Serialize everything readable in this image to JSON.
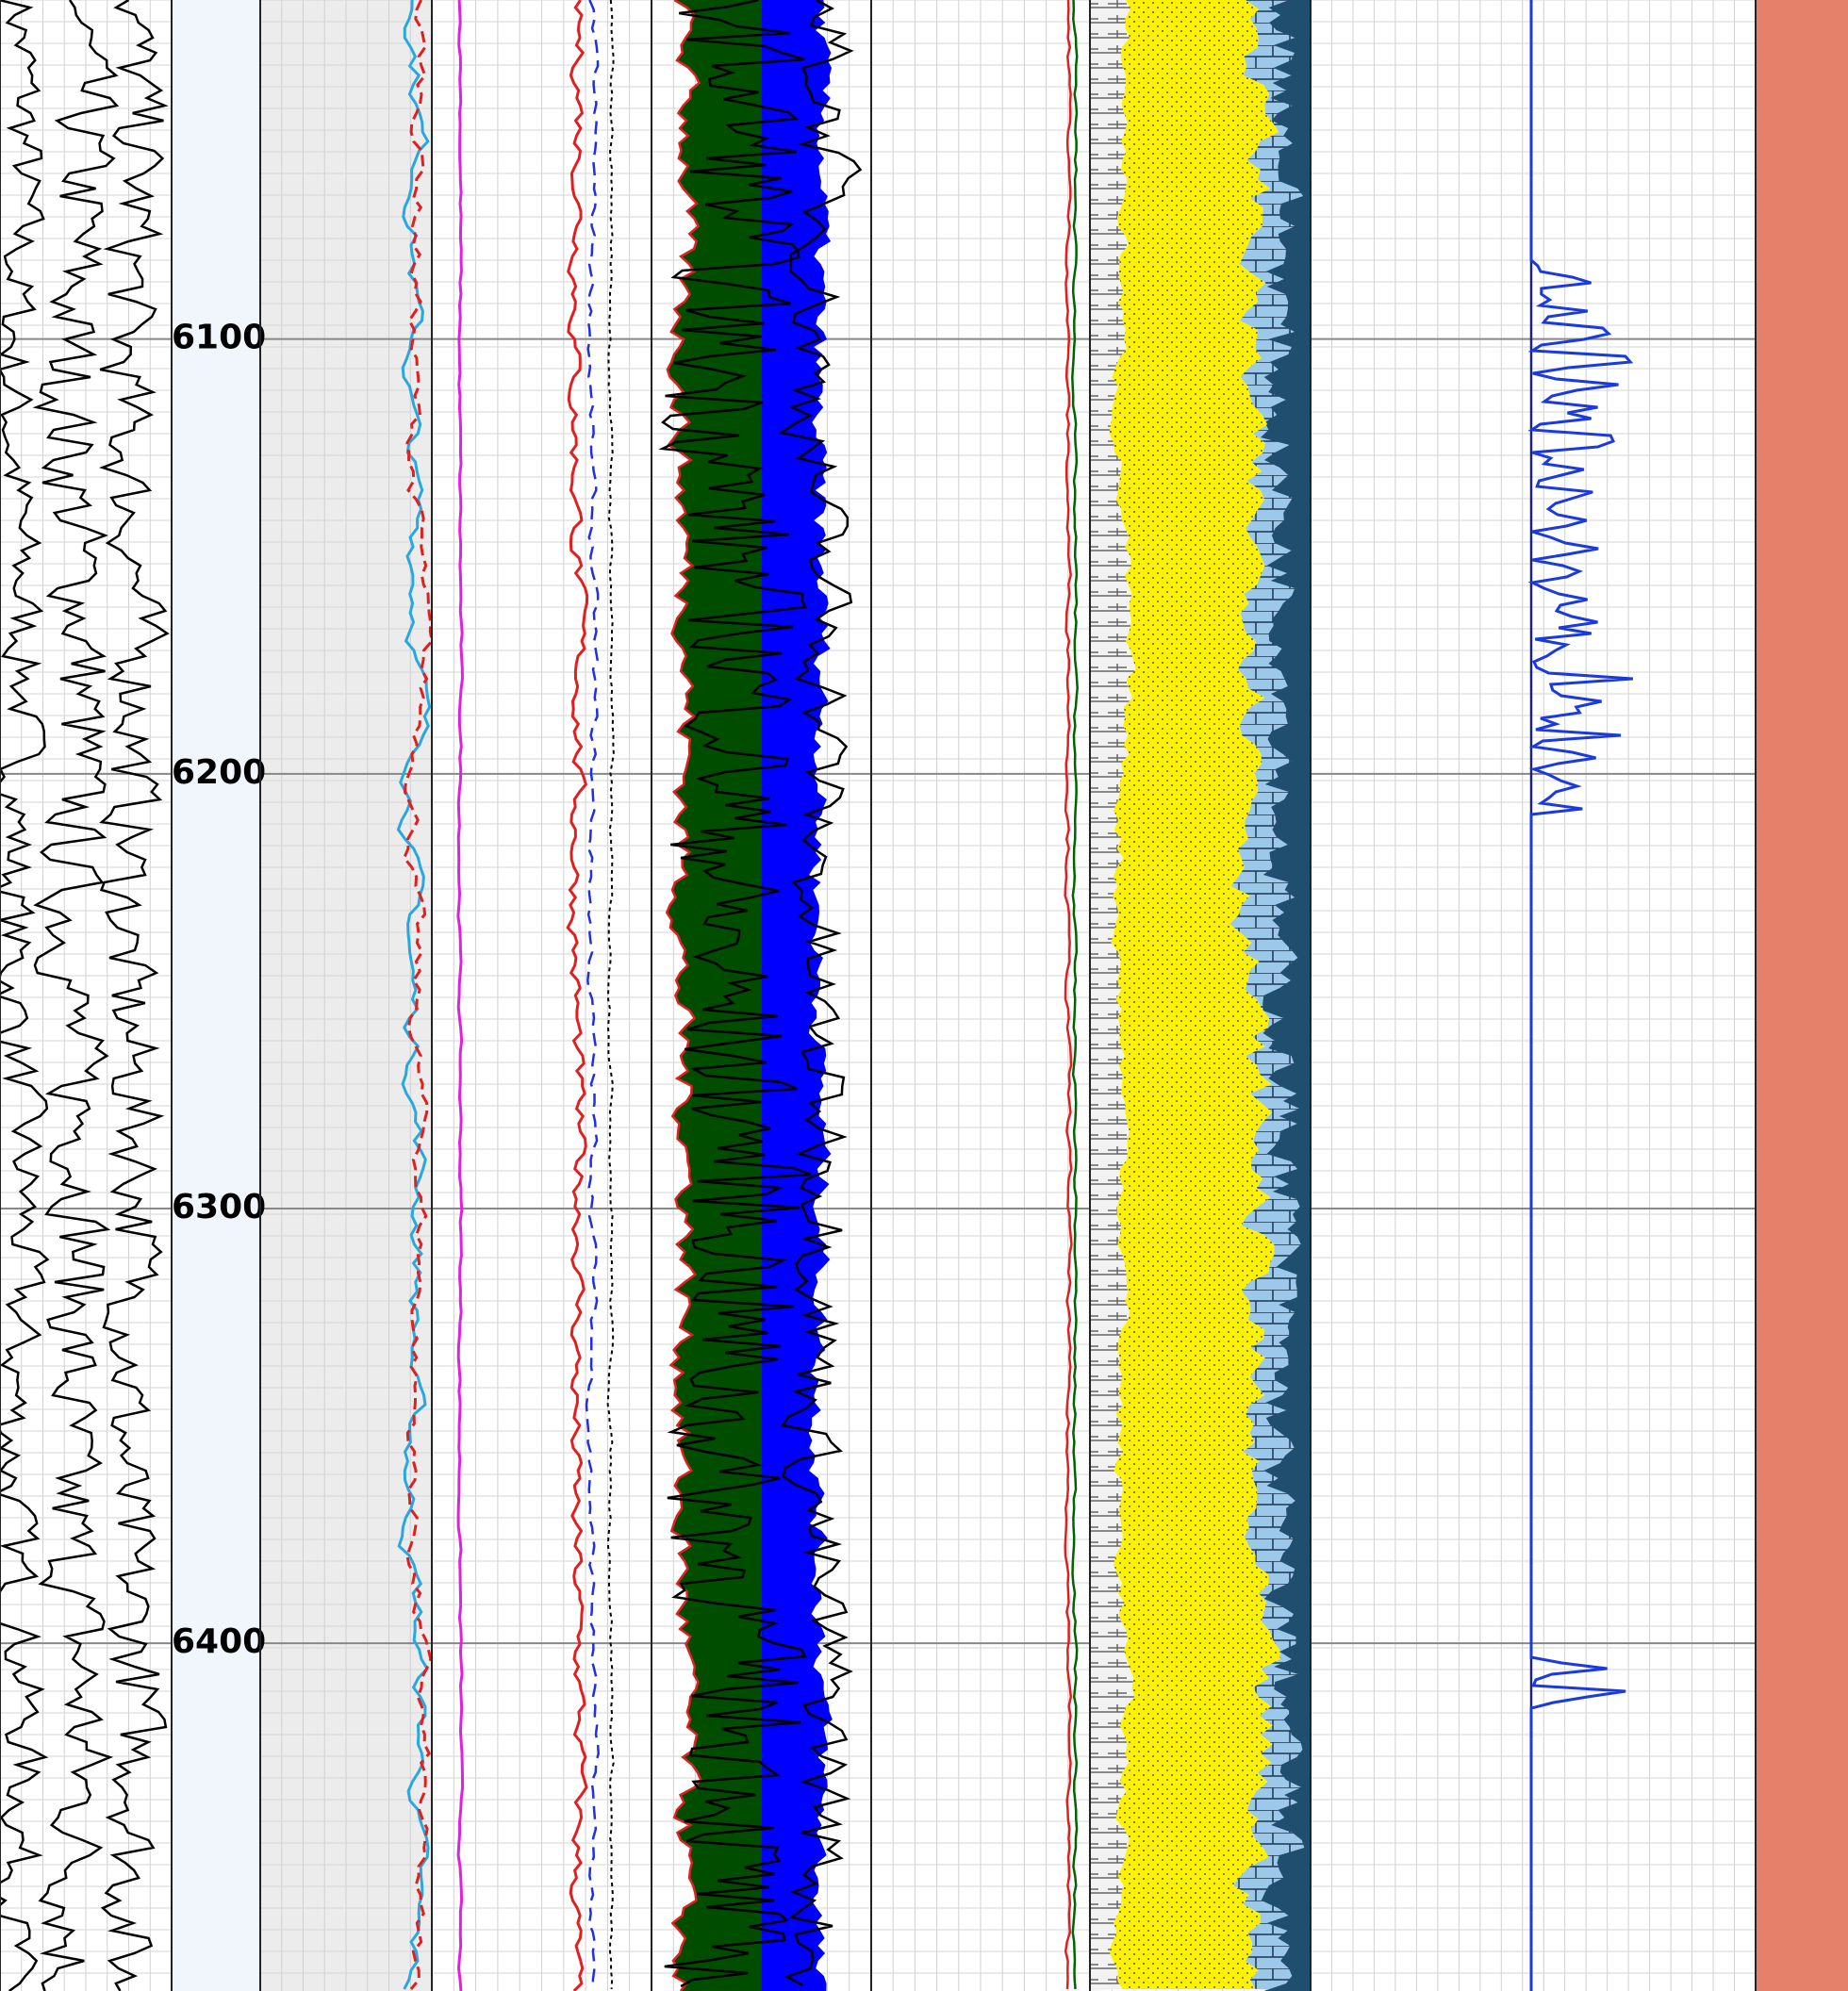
{
  "depth_track": {
    "range": [
      6022,
      6480
    ],
    "ticks": [
      6100,
      6200,
      6300,
      6400
    ]
  }
}
